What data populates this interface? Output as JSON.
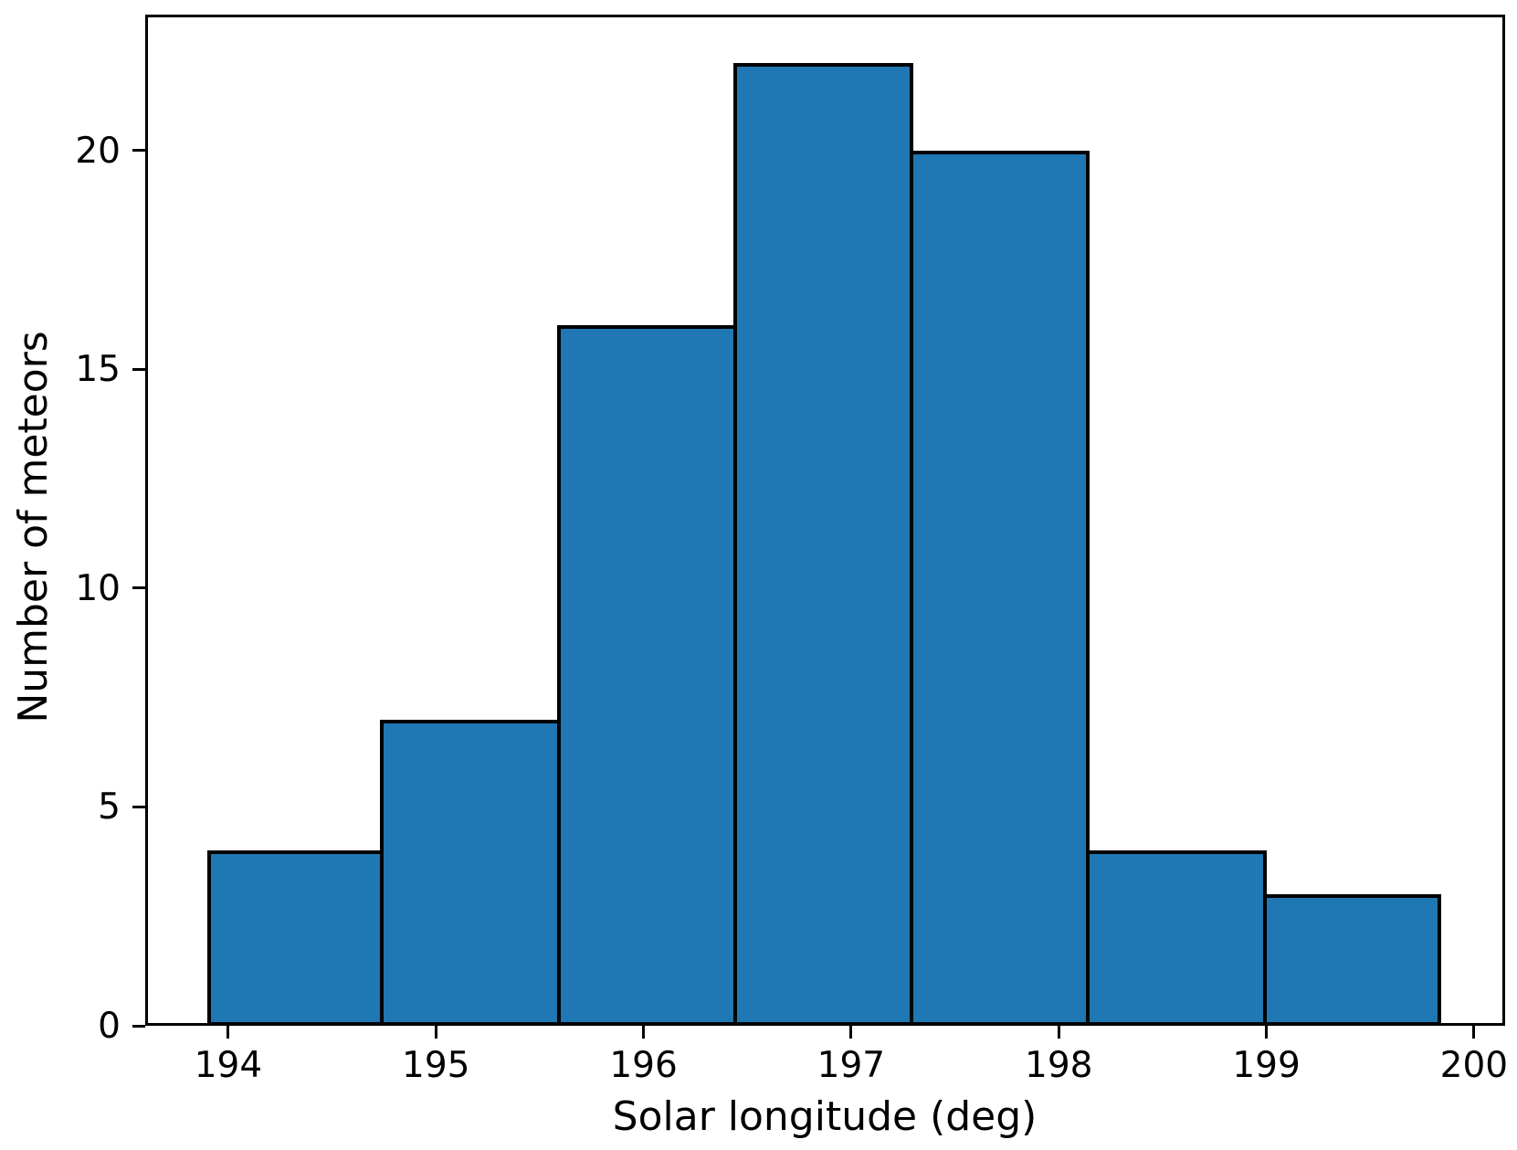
{
  "chart_data": {
    "type": "bar",
    "subtype": "histogram",
    "title": "",
    "xlabel": "Solar longitude (deg)",
    "ylabel": "Number of meteors",
    "bin_edges": [
      193.9,
      194.75,
      195.6,
      196.45,
      197.3,
      198.15,
      199.0,
      199.84
    ],
    "counts": [
      4,
      7,
      16,
      22,
      20,
      4,
      3
    ],
    "xticks": [
      194,
      195,
      196,
      197,
      198,
      199,
      200
    ],
    "yticks": [
      0,
      5,
      10,
      15,
      20
    ],
    "xlim": [
      193.6,
      200.15
    ],
    "ylim": [
      0,
      23.1
    ],
    "grid": false,
    "legend": null,
    "bar_color": "#1f77b4",
    "bar_edge_color": "#000000",
    "axis_color": "#000000",
    "text_color": "#000000",
    "background_color": "#ffffff"
  }
}
